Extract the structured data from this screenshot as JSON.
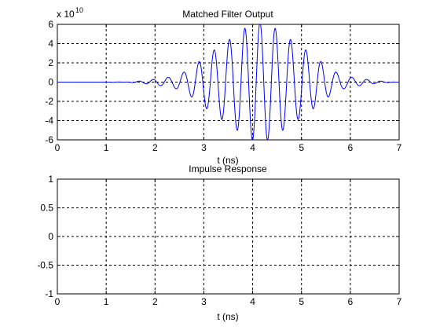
{
  "figure": {
    "background": "#ffffff",
    "line_color": "#0000ff"
  },
  "chart_data": [
    {
      "type": "line",
      "title": "Matched Filter Output",
      "xlabel": "t (ns)",
      "ylabel": "",
      "y_multiplier_label": "x 10",
      "y_multiplier_exponent": "10",
      "xlim": [
        0,
        7
      ],
      "ylim": [
        -6,
        6
      ],
      "xticks": [
        0,
        1,
        2,
        3,
        4,
        5,
        6,
        7
      ],
      "xtick_labels": [
        "0",
        "1",
        "2",
        "3",
        "4",
        "5",
        "6",
        "7"
      ],
      "yticks": [
        -6,
        -4,
        -2,
        0,
        2,
        4,
        6
      ],
      "ytick_labels": [
        "-6",
        "-4",
        "-2",
        "0",
        "2",
        "4",
        "6"
      ],
      "grid": true,
      "series": [
        {
          "color": "#0000ff",
          "signal": {
            "start": 1.1,
            "end": 7.0,
            "center": 4.15,
            "peak_amplitude": 6.0,
            "frequency_per_ns": 3.2,
            "envelope_sigma_ns": 0.85,
            "flat_value_before_start": 0
          },
          "peaks": [
            {
              "x": 1.95,
              "y": 0.2
            },
            {
              "x": 2.25,
              "y": 0.5
            },
            {
              "x": 2.55,
              "y": 1.0
            },
            {
              "x": 2.85,
              "y": 2.5
            },
            {
              "x": 3.15,
              "y": 3.7
            },
            {
              "x": 3.45,
              "y": 4.8
            },
            {
              "x": 3.75,
              "y": 5.6
            },
            {
              "x": 4.05,
              "y": 6.0
            },
            {
              "x": 4.35,
              "y": 5.8
            },
            {
              "x": 4.65,
              "y": 5.0
            },
            {
              "x": 4.95,
              "y": 4.0
            },
            {
              "x": 5.25,
              "y": 2.9
            },
            {
              "x": 5.55,
              "y": 1.8
            },
            {
              "x": 5.85,
              "y": 1.0
            },
            {
              "x": 6.15,
              "y": 0.5
            },
            {
              "x": 6.45,
              "y": 0.2
            }
          ]
        }
      ]
    },
    {
      "type": "line",
      "title": "Impulse Response",
      "xlabel": "t (ns)",
      "ylabel": "",
      "xlim": [
        0,
        7
      ],
      "ylim": [
        -1,
        1
      ],
      "xticks": [
        0,
        1,
        2,
        3,
        4,
        5,
        6,
        7
      ],
      "xtick_labels": [
        "0",
        "1",
        "2",
        "3",
        "4",
        "5",
        "6",
        "7"
      ],
      "yticks": [
        -1,
        -0.5,
        0,
        0.5,
        1
      ],
      "ytick_labels": [
        "-1",
        "-0.5",
        "0",
        "0.5",
        "1"
      ],
      "grid": true,
      "series": []
    }
  ]
}
